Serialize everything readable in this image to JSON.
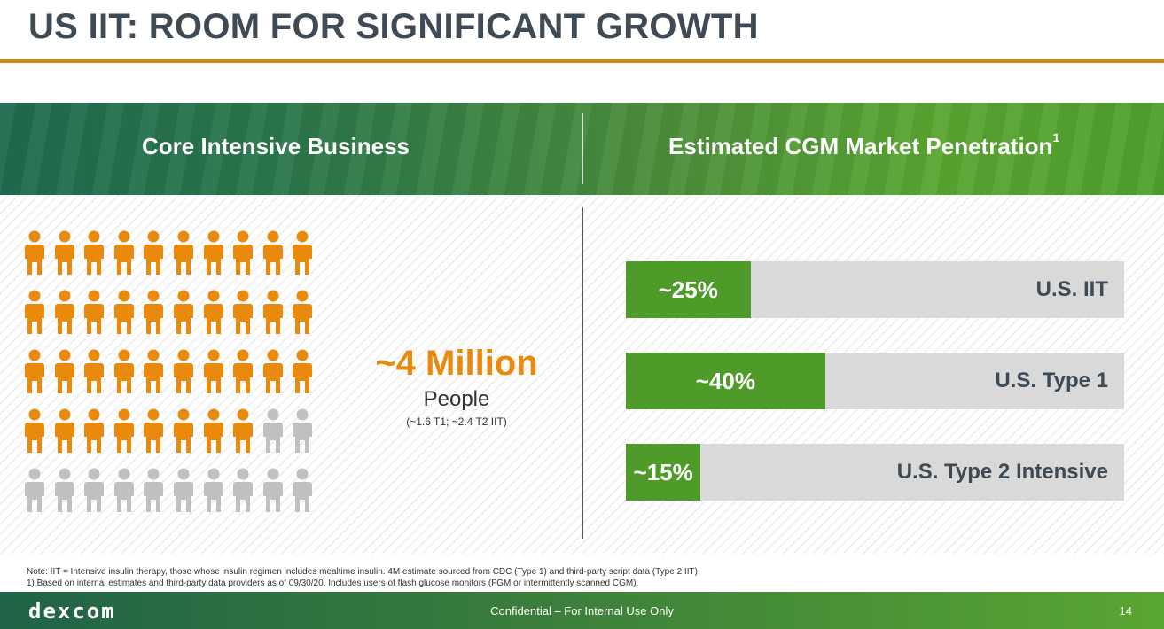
{
  "slide": {
    "title": "US IIT: ROOM FOR SIGNIFICANT GROWTH",
    "page_number": "14"
  },
  "band": {
    "left_heading": "Core Intensive Business",
    "right_heading": "Estimated CGM Market Penetration",
    "right_heading_sup": "1"
  },
  "people": {
    "big_stat": "~4 Million",
    "label": "People",
    "sub": "(~1.6 T1; ~2.4 T2 IIT)",
    "icon": "person-icon",
    "grid": {
      "rows": 5,
      "cols": 10,
      "highlighted": 38
    },
    "colors": {
      "highlight": "#ea8a0c",
      "muted": "#c0c0c0"
    }
  },
  "penetration": {
    "color_fill": "#4e9b2a",
    "color_track": "#d9d9d9",
    "bars": [
      {
        "pct_label": "~25%",
        "value": 25,
        "label": "U.S. IIT"
      },
      {
        "pct_label": "~40%",
        "value": 40,
        "label": "U.S. Type 1"
      },
      {
        "pct_label": "~15%",
        "value": 15,
        "label": "U.S. Type 2 Intensive"
      }
    ]
  },
  "notes": {
    "line1": "Note: IIT = Intensive insulin therapy, those whose insulin regimen includes mealtime insulin. 4M estimate sourced from CDC (Type 1) and third-party script data (Type 2 IIT).",
    "line2": "1) Based on internal estimates and third-party data providers as of 09/30/20. Includes users of flash glucose monitors (FGM or intermittently scanned CGM)."
  },
  "footer": {
    "logo": "DEXCOM",
    "confidential": "Confidential – For Internal Use Only"
  }
}
